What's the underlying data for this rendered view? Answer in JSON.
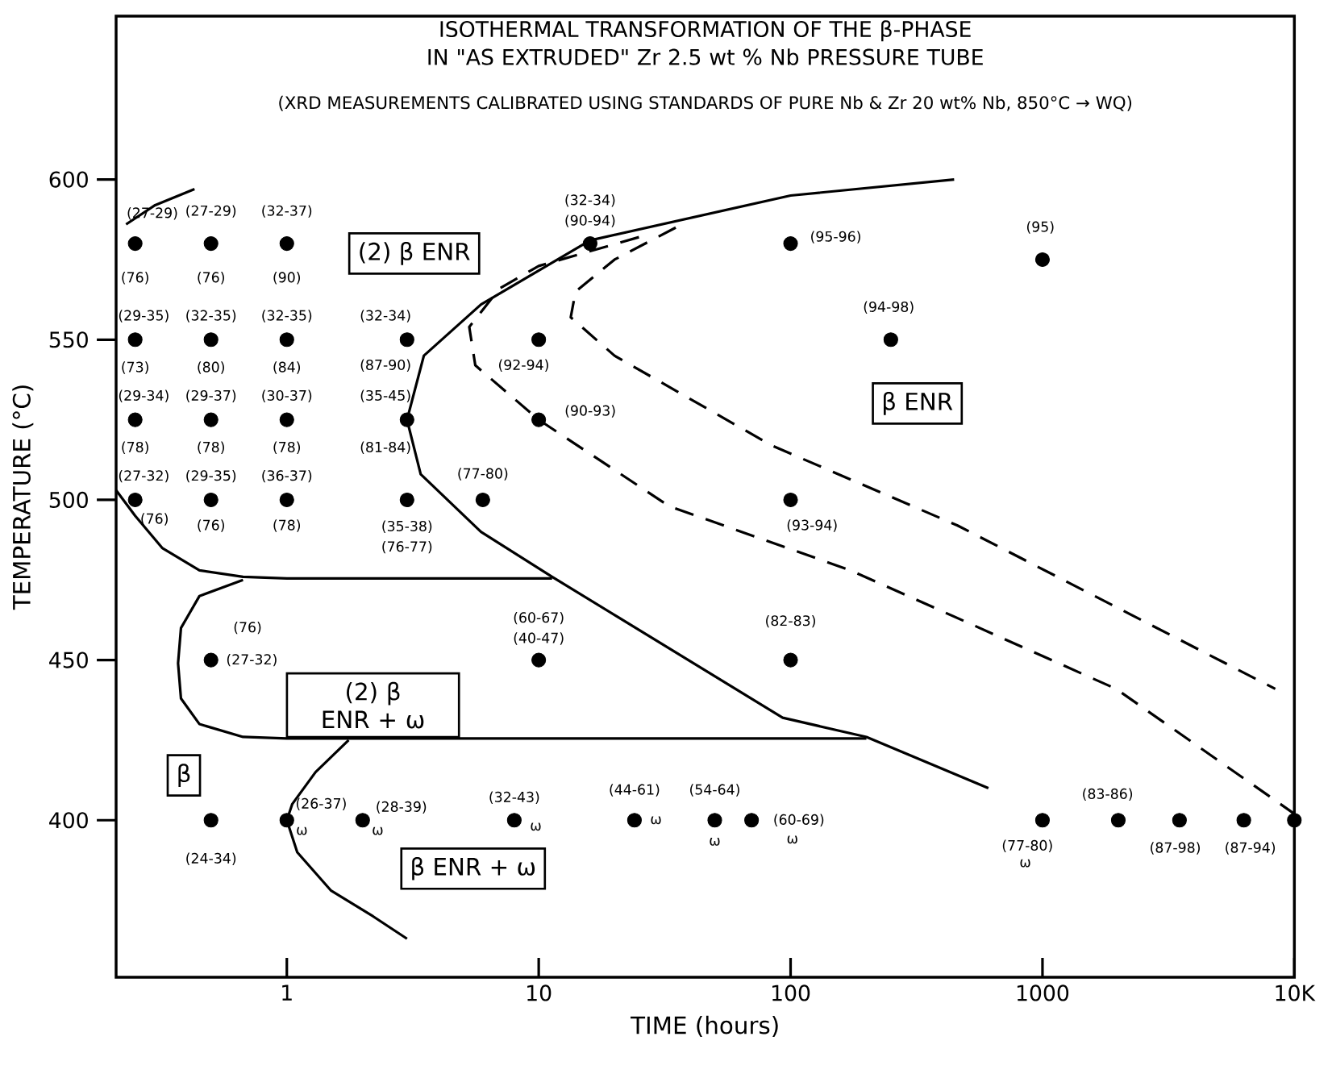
{
  "chart_data": {
    "type": "scatter",
    "title": "ISOTHERMAL TRANSFORMATION OF THE β-PHASE IN \"AS EXTRUDED\" Zr 2.5 wt % Nb PRESSURE TUBE",
    "subtitle": "(XRD MEASUREMENTS CALIBRATED USING STANDARDS OF PURE Nb & Zr 20 wt% Nb, 850°C → WQ)",
    "xlabel": "TIME (hours)",
    "ylabel": "TEMPERATURE (°C)",
    "log": "x",
    "grid": false,
    "xlim": [
      0.21,
      10000
    ],
    "ylim": [
      351,
      651
    ],
    "xticks": [
      1,
      10,
      100,
      1000,
      {
        "value": 10000,
        "label": "10K"
      }
    ],
    "yticks": [
      400,
      450,
      500,
      550,
      600
    ],
    "series": [
      {
        "color": "#000000",
        "marker": "circle",
        "x": [
          0.25,
          0.5,
          1,
          16,
          100,
          1000,
          250,
          0.25,
          0.5,
          1,
          3,
          10,
          0.25,
          0.5,
          1,
          3,
          10,
          0.25,
          0.5,
          1,
          3,
          6,
          100,
          0.5,
          10,
          100,
          0.5,
          1,
          2,
          8,
          24,
          50,
          70,
          1000,
          2000,
          3500,
          6300,
          10000
        ],
        "values": [
          580,
          580,
          580,
          580,
          580,
          575,
          550,
          550,
          550,
          550,
          550,
          550,
          525,
          525,
          525,
          525,
          525,
          500,
          500,
          500,
          500,
          500,
          500,
          450,
          450,
          450,
          400,
          400,
          400,
          400,
          400,
          400,
          400,
          400,
          400,
          400,
          400,
          400
        ]
      },
      {
        "type": "line",
        "color": "#000000",
        "line_style": "solid",
        "x": [
          0.23,
          0.3,
          0.43
        ],
        "values": [
          586,
          592,
          597
        ]
      },
      {
        "type": "line",
        "color": "#000000",
        "line_style": "solid",
        "x": [
          446,
          100,
          40,
          16,
          5.9,
          3.5,
          3.0,
          3.4,
          5.9,
          11.3,
          93,
          200,
          610
        ],
        "values": [
          600,
          595,
          588,
          581,
          561,
          545,
          525,
          508,
          490,
          476,
          432,
          426,
          410
        ]
      },
      {
        "type": "line",
        "color": "#000000",
        "line_style": "solid",
        "x": [
          0.21,
          0.25,
          0.32,
          0.45,
          0.67,
          1,
          11.3
        ],
        "values": [
          503,
          495,
          485,
          478,
          476,
          475.5,
          475.5
        ]
      },
      {
        "type": "line",
        "color": "#000000",
        "line_style": "solid",
        "x": [
          0.67,
          0.45,
          0.38,
          0.37,
          0.38,
          0.45,
          0.67,
          1,
          200
        ],
        "values": [
          475,
          470,
          460,
          449,
          438,
          430,
          426,
          425.5,
          425.5
        ]
      },
      {
        "type": "line",
        "color": "#000000",
        "line_style": "solid",
        "x": [
          1.76,
          1.3,
          1.05,
          1,
          1.1,
          1.5,
          2.2,
          3
        ],
        "values": [
          425,
          415,
          405,
          400,
          390,
          378,
          370,
          363
        ]
      },
      {
        "type": "line",
        "color": "#000000",
        "line_style": "dashed",
        "x": [
          25,
          10,
          7,
          5.3,
          5.6,
          10,
          33,
          173,
          1960,
          10000
        ],
        "values": [
          582,
          573,
          566,
          554,
          542,
          525,
          498,
          478,
          441,
          402
        ]
      },
      {
        "type": "line",
        "color": "#000000",
        "line_style": "dashed",
        "x": [
          35,
          20,
          14,
          13.4,
          20,
          84,
          460,
          8400
        ],
        "values": [
          585,
          575,
          565,
          557,
          545,
          517,
          492,
          441
        ]
      }
    ],
    "annotations": [
      {
        "text": "(27-29)",
        "x": 0.25,
        "y": 580
      },
      {
        "text": "(76)",
        "x": 0.25,
        "y": 580
      },
      {
        "text": "(27-29)",
        "x": 0.5,
        "y": 580
      },
      {
        "text": "(76)",
        "x": 0.5,
        "y": 580
      },
      {
        "text": "(32-37)",
        "x": 1,
        "y": 580
      },
      {
        "text": "(90)",
        "x": 1,
        "y": 580
      },
      {
        "text": "(32-34)",
        "x": 16,
        "y": 580
      },
      {
        "text": "(90-94)",
        "x": 16,
        "y": 580
      },
      {
        "text": "(95-96)",
        "x": 100,
        "y": 580
      },
      {
        "text": "(95)",
        "x": 1000,
        "y": 575
      },
      {
        "text": "(94-98)",
        "x": 250,
        "y": 550
      },
      {
        "text": "(29-35)",
        "x": 0.25,
        "y": 550
      },
      {
        "text": "(73)",
        "x": 0.25,
        "y": 550
      },
      {
        "text": "(32-35)",
        "x": 0.5,
        "y": 550
      },
      {
        "text": "(80)",
        "x": 0.5,
        "y": 550
      },
      {
        "text": "(32-35)",
        "x": 1,
        "y": 550
      },
      {
        "text": "(84)",
        "x": 1,
        "y": 550
      },
      {
        "text": "(32-34)",
        "x": 3,
        "y": 550
      },
      {
        "text": "(87-90)",
        "x": 3,
        "y": 550
      },
      {
        "text": "(92-94)",
        "x": 10,
        "y": 550
      },
      {
        "text": "(29-34)",
        "x": 0.25,
        "y": 525
      },
      {
        "text": "(78)",
        "x": 0.25,
        "y": 525
      },
      {
        "text": "(29-37)",
        "x": 0.5,
        "y": 525
      },
      {
        "text": "(78)",
        "x": 0.5,
        "y": 525
      },
      {
        "text": "(30-37)",
        "x": 1,
        "y": 525
      },
      {
        "text": "(78)",
        "x": 1,
        "y": 525
      },
      {
        "text": "(35-45)",
        "x": 3,
        "y": 525
      },
      {
        "text": "(81-84)",
        "x": 3,
        "y": 525
      },
      {
        "text": "(90-93)",
        "x": 10,
        "y": 525
      },
      {
        "text": "(27-32)",
        "x": 0.25,
        "y": 500
      },
      {
        "text": "(76)",
        "x": 0.25,
        "y": 500
      },
      {
        "text": "(29-35)",
        "x": 0.5,
        "y": 500
      },
      {
        "text": "(76)",
        "x": 0.5,
        "y": 500
      },
      {
        "text": "(36-37)",
        "x": 1,
        "y": 500
      },
      {
        "text": "(78)",
        "x": 1,
        "y": 500
      },
      {
        "text": "(35-38)",
        "x": 3,
        "y": 500
      },
      {
        "text": "(76-77)",
        "x": 3,
        "y": 500
      },
      {
        "text": "(77-80)",
        "x": 6,
        "y": 500
      },
      {
        "text": "(93-94)",
        "x": 100,
        "y": 500
      },
      {
        "text": "(76)",
        "x": 0.5,
        "y": 450
      },
      {
        "text": "(27-32)",
        "x": 0.5,
        "y": 450
      },
      {
        "text": "(60-67)",
        "x": 10,
        "y": 450
      },
      {
        "text": "(40-47)",
        "x": 10,
        "y": 450
      },
      {
        "text": "(82-83)",
        "x": 100,
        "y": 450
      },
      {
        "text": "(24-34)",
        "x": 0.5,
        "y": 400
      },
      {
        "text": "(26-37)",
        "x": 1,
        "y": 400
      },
      {
        "text": "ω",
        "x": 1,
        "y": 400
      },
      {
        "text": "(28-39)",
        "x": 2,
        "y": 400
      },
      {
        "text": "ω",
        "x": 2,
        "y": 400
      },
      {
        "text": "(32-43)",
        "x": 8,
        "y": 400
      },
      {
        "text": "ω",
        "x": 8,
        "y": 400
      },
      {
        "text": "(44-61)",
        "x": 24,
        "y": 400
      },
      {
        "text": "ω",
        "x": 24,
        "y": 400
      },
      {
        "text": "(54-64)",
        "x": 50,
        "y": 400
      },
      {
        "text": "ω",
        "x": 50,
        "y": 400
      },
      {
        "text": "(60-69)",
        "x": 70,
        "y": 400
      },
      {
        "text": "ω",
        "x": 70,
        "y": 400
      },
      {
        "text": "(77-80)",
        "x": 1000,
        "y": 400
      },
      {
        "text": "ω",
        "x": 1000,
        "y": 400
      },
      {
        "text": "(83-86)",
        "x": 2000,
        "y": 400
      },
      {
        "text": "(87-98)",
        "x": 3500,
        "y": 400
      },
      {
        "text": "(87-94)",
        "x": 6300,
        "y": 400
      },
      "(2) β ENR",
      "β ENR",
      "(2) β ENR + ω",
      "β",
      "β ENR + ω"
    ]
  }
}
